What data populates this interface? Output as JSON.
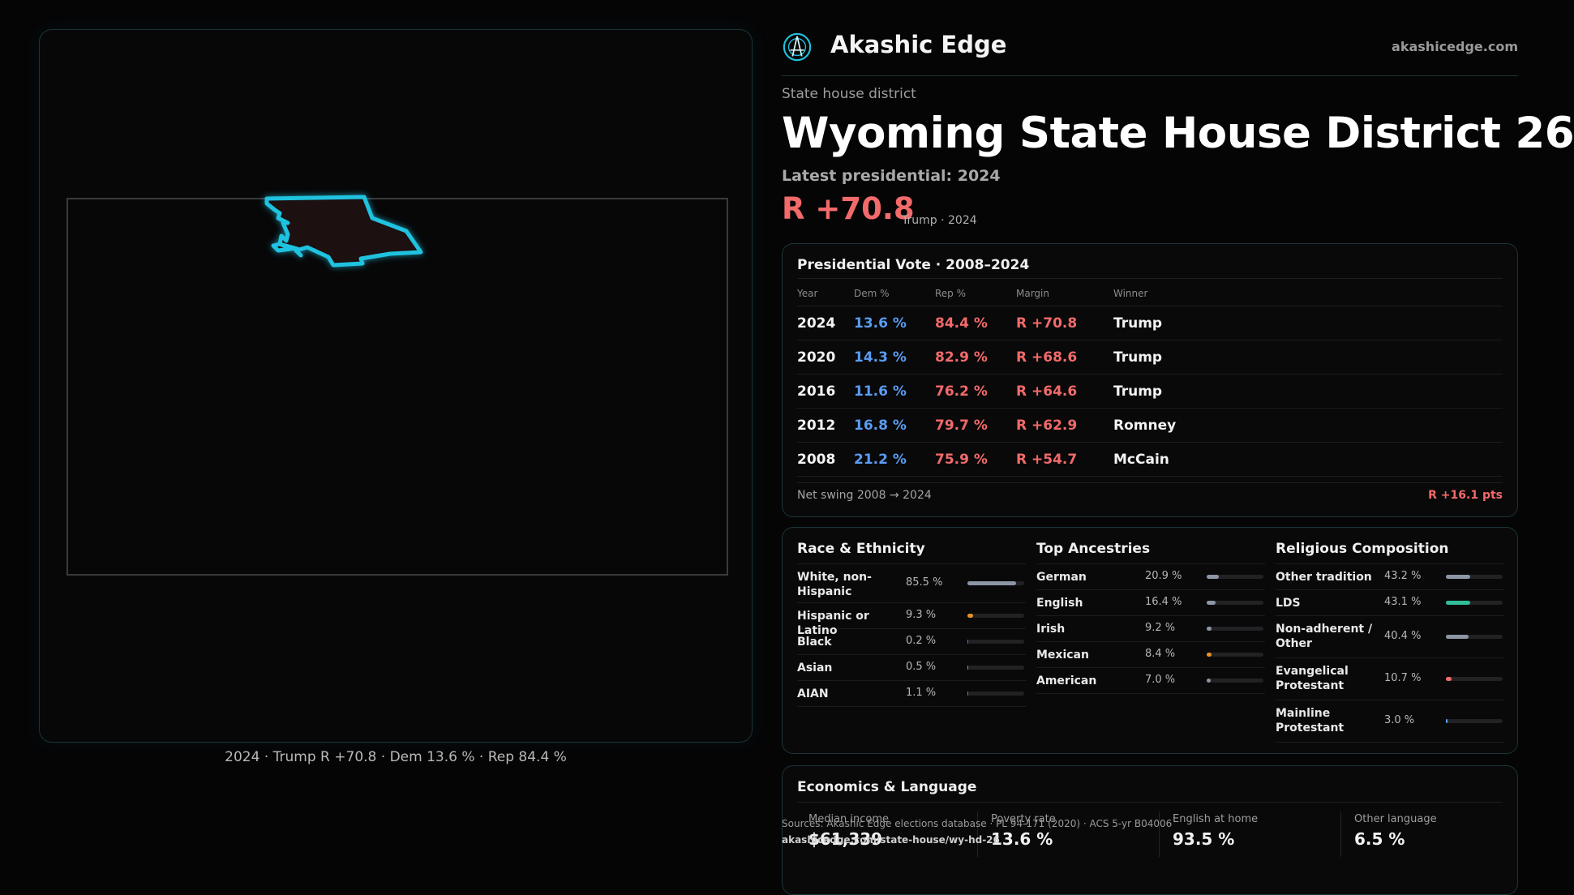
{
  "brand": {
    "name": "Akashic Edge",
    "url": "akashicedge.com",
    "logo": "compass-icon"
  },
  "header": {
    "kicker": "State house district",
    "title": "Wyoming State House District 26",
    "latest": "Latest presidential: 2024",
    "margin": "R +70.8",
    "margin_sub": "Trump · 2024"
  },
  "map": {
    "caption": "2024 · Trump R +70.8 · Dem 13.6 % · Rep 84.4 %"
  },
  "presidential": {
    "title": "Presidential Vote · 2008–2024",
    "headers": {
      "year": "Year",
      "dem": "Dem %",
      "rep": "Rep %",
      "margin": "Margin",
      "winner": "Winner"
    },
    "rows": [
      {
        "year": "2024",
        "dem": "13.6 %",
        "rep": "84.4 %",
        "margin": "R +70.8",
        "winner": "Trump"
      },
      {
        "year": "2020",
        "dem": "14.3 %",
        "rep": "82.9 %",
        "margin": "R +68.6",
        "winner": "Trump"
      },
      {
        "year": "2016",
        "dem": "11.6 %",
        "rep": "76.2 %",
        "margin": "R +64.6",
        "winner": "Trump"
      },
      {
        "year": "2012",
        "dem": "16.8 %",
        "rep": "79.7 %",
        "margin": "R +62.9",
        "winner": "Romney"
      },
      {
        "year": "2008",
        "dem": "21.2 %",
        "rep": "75.9 %",
        "margin": "R +54.7",
        "winner": "McCain"
      }
    ],
    "swing_label": "Net swing 2008 → 2024",
    "swing_value": "R +16.1 pts"
  },
  "race": {
    "title": "Race & Ethnicity",
    "items": [
      {
        "label": "White, non-Hispanic",
        "value": "85.5 %",
        "pct": 85.5,
        "color": "#8c96a4"
      },
      {
        "label": "Hispanic or Latino",
        "value": "9.3 %",
        "pct": 9.3,
        "color": "#e8902a"
      },
      {
        "label": "Black",
        "value": "0.2 %",
        "pct": 0.2,
        "color": "#7a5cf0"
      },
      {
        "label": "Asian",
        "value": "0.5 %",
        "pct": 0.5,
        "color": "#2fbf9a"
      },
      {
        "label": "AIAN",
        "value": "1.1 %",
        "pct": 1.1,
        "color": "#e05a3a"
      }
    ]
  },
  "ancestry": {
    "title": "Top Ancestries",
    "items": [
      {
        "label": "German",
        "value": "20.9 %",
        "pct": 20.9,
        "color": "#8c96a4"
      },
      {
        "label": "English",
        "value": "16.4 %",
        "pct": 16.4,
        "color": "#8c96a4"
      },
      {
        "label": "Irish",
        "value": "9.2 %",
        "pct": 9.2,
        "color": "#8c96a4"
      },
      {
        "label": "Mexican",
        "value": "8.4 %",
        "pct": 8.4,
        "color": "#e8902a"
      },
      {
        "label": "American",
        "value": "7.0 %",
        "pct": 7.0,
        "color": "#8c96a4"
      }
    ]
  },
  "religion": {
    "title": "Religious Composition",
    "items": [
      {
        "label": "Other tradition",
        "value": "43.2 %",
        "pct": 43.2,
        "color": "#8c96a4"
      },
      {
        "label": "LDS",
        "value": "43.1 %",
        "pct": 43.1,
        "color": "#2fbf9a"
      },
      {
        "label": "Non-adherent / Other",
        "value": "40.4 %",
        "pct": 40.4,
        "color": "#8c96a4"
      },
      {
        "label": "Evangelical Protestant",
        "value": "10.7 %",
        "pct": 10.7,
        "color": "#f26a6a"
      },
      {
        "label": "Mainline Protestant",
        "value": "3.0 %",
        "pct": 3.0,
        "color": "#5a9cf2"
      }
    ]
  },
  "economics": {
    "title": "Economics & Language",
    "stats": [
      {
        "label": "Median income",
        "value": "$61,339"
      },
      {
        "label": "Poverty rate",
        "value": "13.6 %"
      },
      {
        "label": "English at home",
        "value": "93.5 %"
      },
      {
        "label": "Other language",
        "value": "6.5 %"
      }
    ]
  },
  "source": {
    "text": "Sources: Akashic Edge elections database · PL 94-171 (2020) · ACS 5-yr B04006",
    "url": "akashicedge.com/state-house/wy-hd-26"
  },
  "colors": {
    "rep": "#f26a6a",
    "dem": "#5a9cf2",
    "accent": "#1fc3e0"
  }
}
